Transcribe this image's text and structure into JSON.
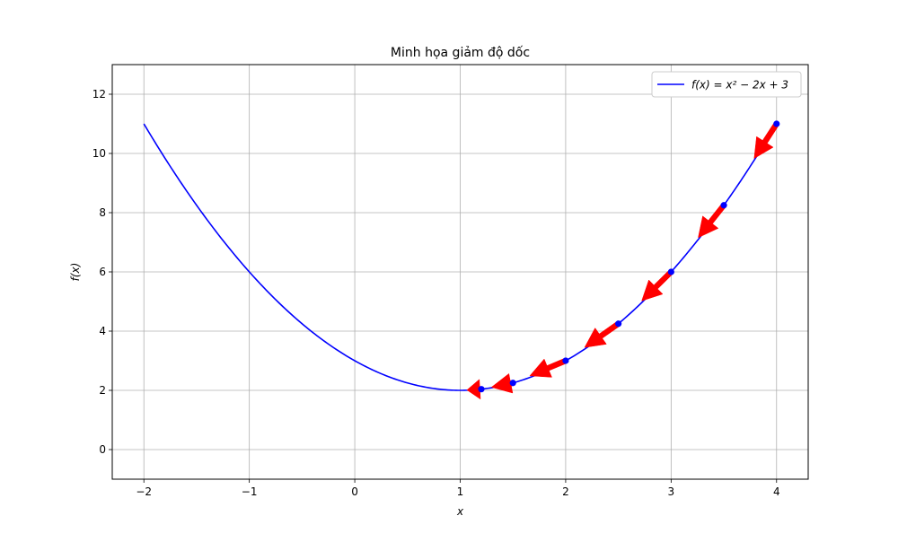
{
  "chart_data": {
    "type": "line",
    "title": "Minh họa giảm độ dốc",
    "xlabel": "x",
    "ylabel": "f(x)",
    "xlim": [
      -2.3,
      4.3
    ],
    "ylim": [
      -1,
      13
    ],
    "xticks": [
      -2,
      -1,
      0,
      1,
      2,
      3,
      4
    ],
    "yticks": [
      0,
      2,
      4,
      6,
      8,
      10,
      12
    ],
    "xtick_labels": [
      "−2",
      "−1",
      "0",
      "1",
      "2",
      "3",
      "4"
    ],
    "ytick_labels": [
      "0",
      "2",
      "4",
      "6",
      "8",
      "10",
      "12"
    ],
    "grid": true,
    "legend_position": "top-right",
    "series": [
      {
        "name": "f(x) = x² − 2x + 3",
        "function": "x^2 - 2x + 3",
        "x_range": [
          -2,
          4
        ],
        "color": "#0000ff"
      }
    ],
    "descent_points": [
      {
        "x": 4.0,
        "y": 11.0
      },
      {
        "x": 3.5,
        "y": 8.25
      },
      {
        "x": 3.0,
        "y": 6.0
      },
      {
        "x": 2.5,
        "y": 4.25
      },
      {
        "x": 2.0,
        "y": 3.0
      },
      {
        "x": 1.5,
        "y": 2.25
      },
      {
        "x": 1.2,
        "y": 2.04
      }
    ],
    "point_color": "#0000ff",
    "arrow_color": "#ff0000"
  }
}
